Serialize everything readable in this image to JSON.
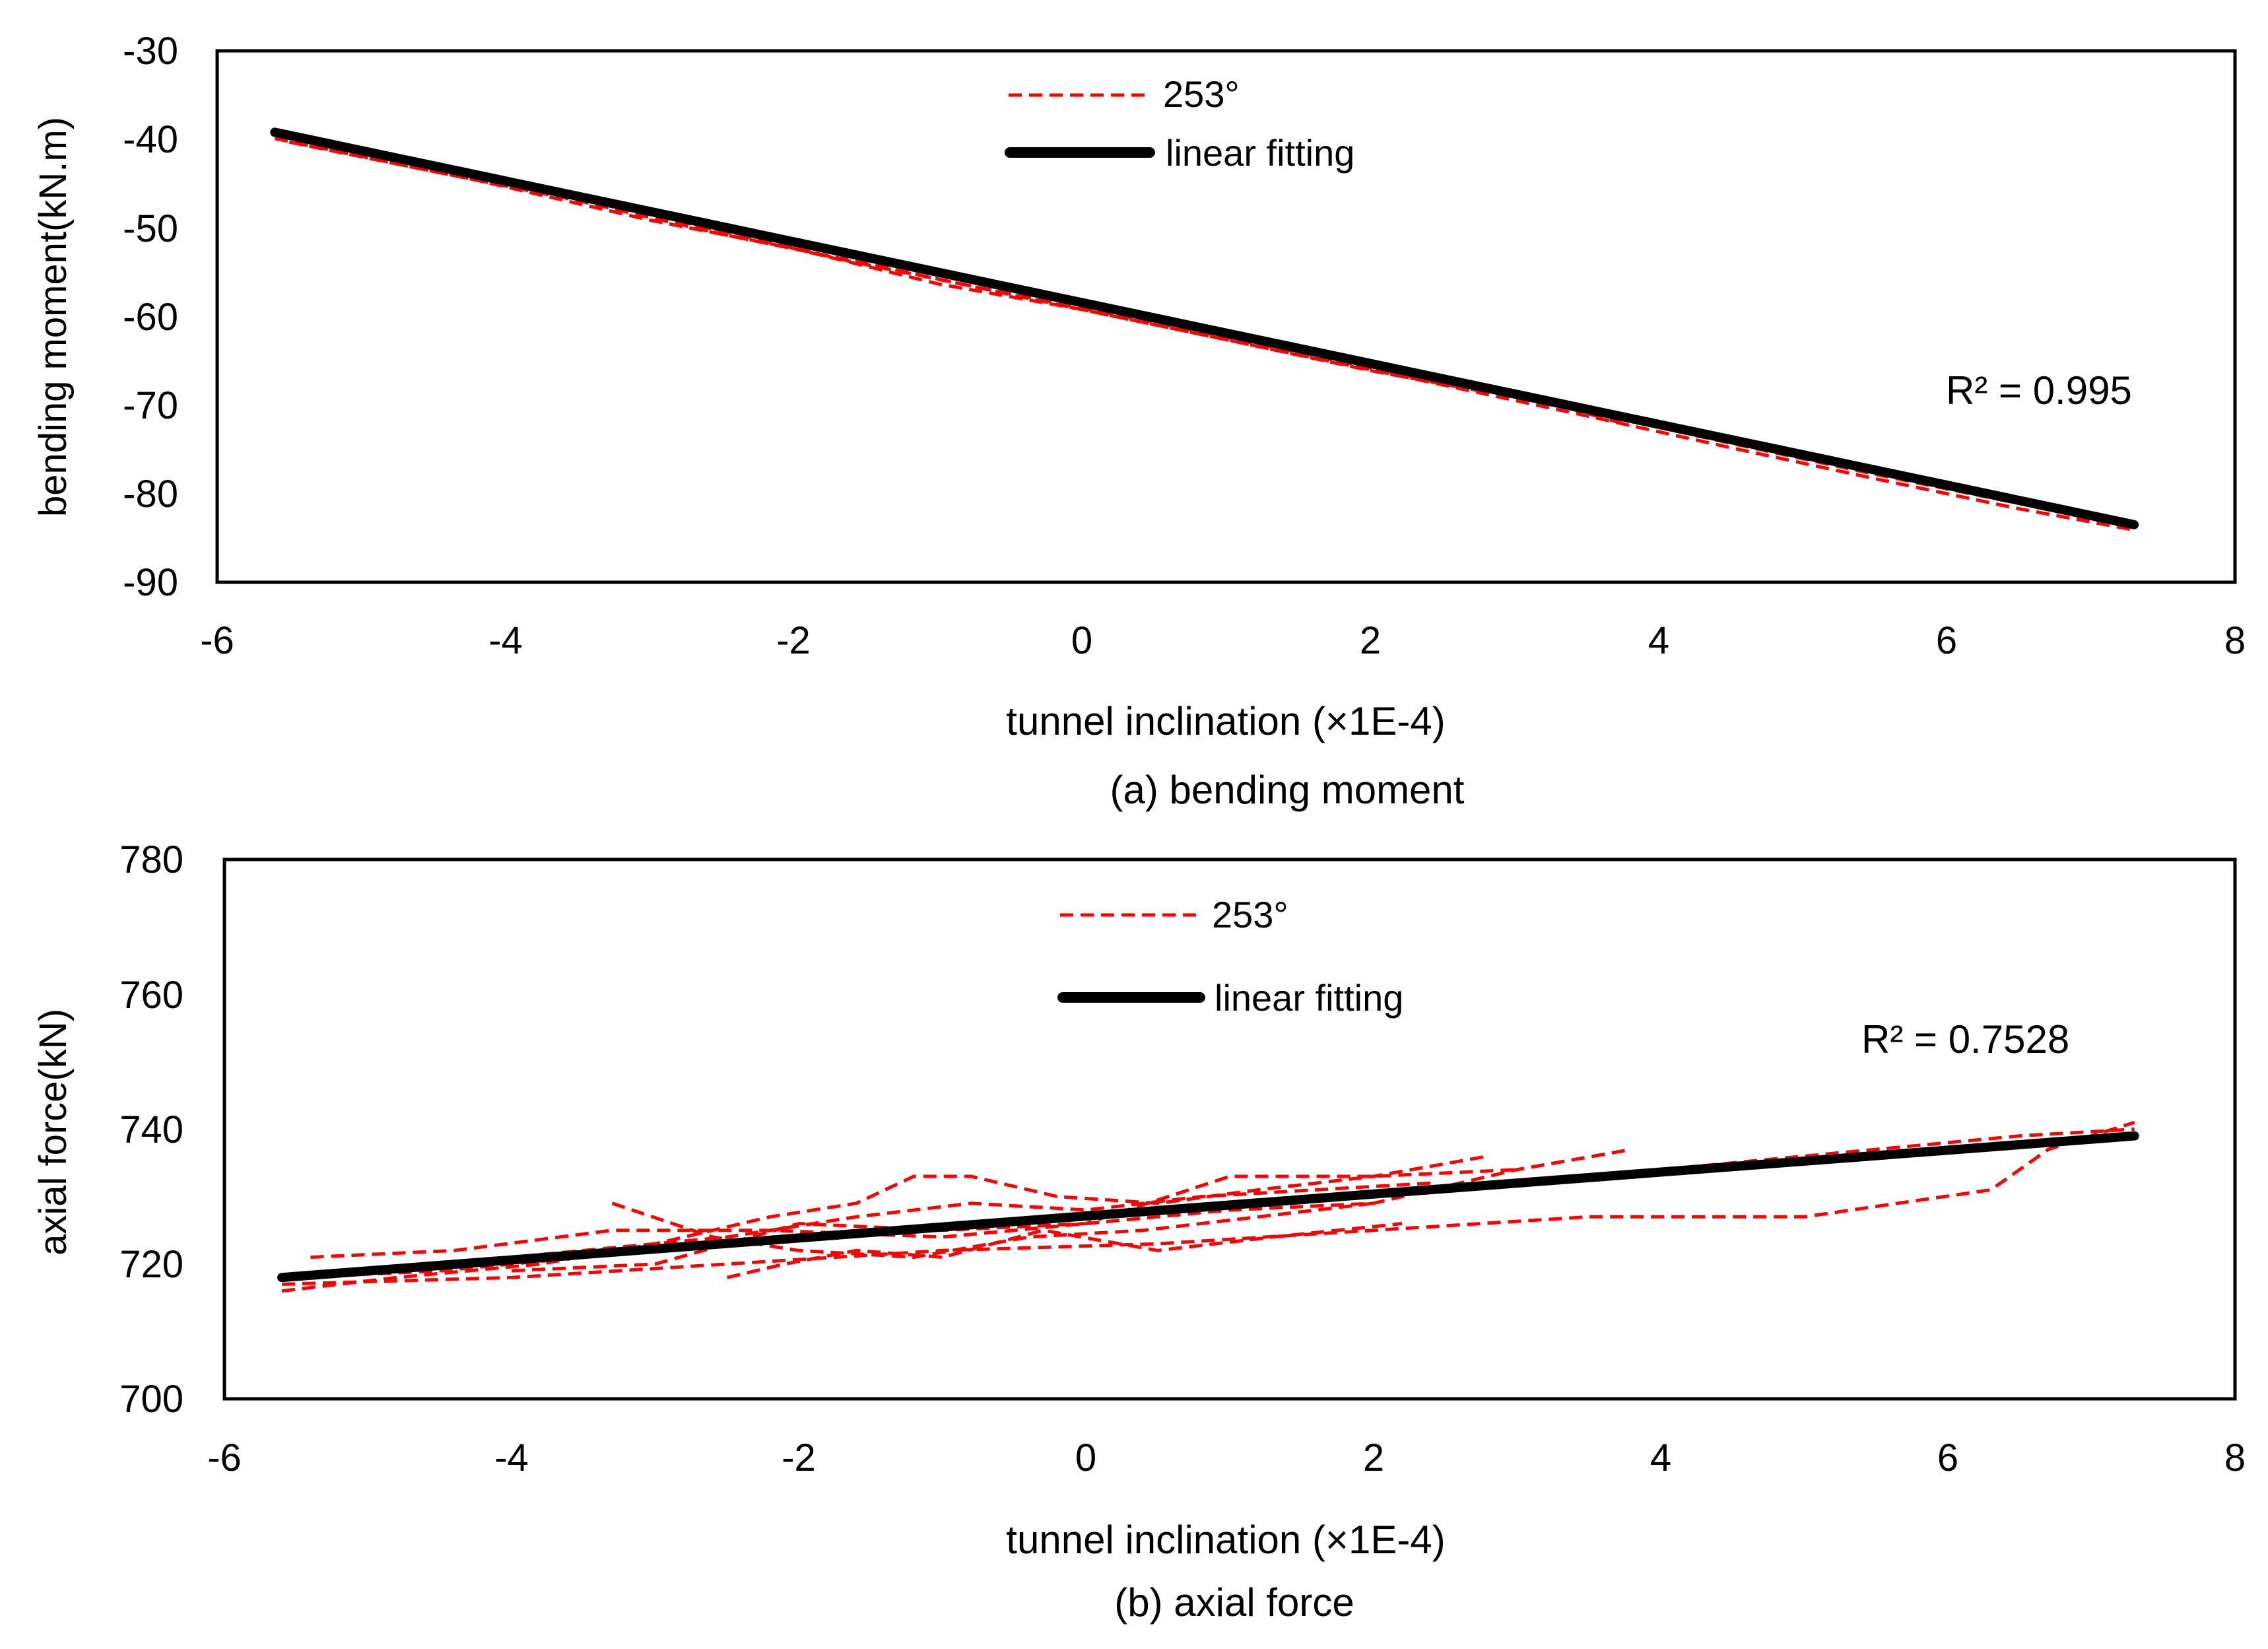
{
  "colors": {
    "data_line": "#ff0000",
    "fit_line": "#000000",
    "axis": "#000000"
  },
  "chart_data": [
    {
      "type": "line",
      "caption": "(a)  bending moment",
      "xlabel": "tunnel inclination  (×1E-4)",
      "ylabel": "bending moment(kN.m)",
      "xlim": [
        -6,
        8
      ],
      "ylim": [
        -90,
        -30
      ],
      "xticks": [
        "-6",
        "-4",
        "-2",
        "0",
        "2",
        "4",
        "6",
        "8"
      ],
      "yticks": [
        "-90",
        "-80",
        "-70",
        "-60",
        "-50",
        "-40",
        "-30"
      ],
      "grid": false,
      "legend_position": "top-center",
      "annotation": "R² = 0.995",
      "series": [
        {
          "name": "253°",
          "style": "dashed",
          "traces": [
            {
              "x": [
                -5.6,
                -4.5,
                -3.5,
                -2.5,
                -1.5,
                -0.5,
                0.5,
                1.5,
                2.5,
                3.5,
                4.5,
                5.5,
                6.5,
                7.3
              ],
              "y": [
                -39.2,
                -42.9,
                -46.5,
                -50.3,
                -53.4,
                -57.0,
                -60.4,
                -63.8,
                -67.2,
                -70.7,
                -74.3,
                -77.8,
                -81.1,
                -83.9
              ]
            },
            {
              "x": [
                -5.6,
                -4.5,
                -3.5,
                -2.5,
                -1.5,
                -0.5,
                0.5,
                1.5,
                2.5,
                3.5,
                4.5,
                5.5,
                6.5,
                7.3
              ],
              "y": [
                -39.9,
                -43.6,
                -46.9,
                -50.7,
                -54.0,
                -57.5,
                -60.9,
                -64.3,
                -67.7,
                -71.2,
                -74.8,
                -78.3,
                -81.7,
                -84.1
              ]
            },
            {
              "x": [
                -5.5,
                -4.2,
                -3.0,
                -2.0,
                -1.0,
                0.0,
                1.0,
                2.0,
                2.8
              ],
              "y": [
                -40.3,
                -44.6,
                -49.1,
                -52.3,
                -56.3,
                -59.2,
                -62.6,
                -66.1,
                -68.5
              ]
            },
            {
              "x": [
                -3.0,
                -2.0,
                -1.0,
                0.0,
                1.0,
                2.0,
                3.0,
                3.8
              ],
              "y": [
                -48.4,
                -51.4,
                -55.0,
                -58.2,
                -61.7,
                -65.0,
                -68.6,
                -72.3
              ]
            },
            {
              "x": [
                -2.8,
                -1.6,
                -0.6,
                0.6,
                1.6,
                2.6
              ],
              "y": [
                -49.2,
                -53.8,
                -57.1,
                -61.0,
                -64.4,
                -67.9
              ]
            }
          ]
        },
        {
          "name": "linear fitting",
          "style": "solid",
          "x": [
            -5.6,
            7.3
          ],
          "y": [
            -39.2,
            -83.5
          ]
        }
      ]
    },
    {
      "type": "line",
      "caption": "(b)  axial force",
      "xlabel": "tunnel inclination  (×1E-4)",
      "ylabel": "axial force(kN)",
      "xlim": [
        -6,
        8
      ],
      "ylim": [
        700,
        780
      ],
      "xticks": [
        "-6",
        "-4",
        "-2",
        "0",
        "2",
        "4",
        "6",
        "8"
      ],
      "yticks": [
        "700",
        "720",
        "740",
        "760",
        "780"
      ],
      "grid": false,
      "legend_position": "top-center",
      "annotation": "R² = 0.7528",
      "series": [
        {
          "name": "253°",
          "style": "dashed",
          "traces": [
            {
              "x": [
                -5.6,
                -4.8,
                -3.8,
                -3.0,
                -2.2,
                -1.6,
                -1.2,
                -0.8,
                -0.2,
                0.5,
                1.2,
                2.0,
                2.8
              ],
              "y": [
                716,
                718,
                720,
                723,
                727,
                729,
                733,
                733,
                730,
                729,
                731,
                733,
                736
              ]
            },
            {
              "x": [
                -5.5,
                -4.5,
                -3.5,
                -2.5,
                -1.5,
                -0.5,
                0.5,
                1.5,
                2.5,
                3.5,
                4.5,
                5.5,
                6.5,
                7.3
              ],
              "y": [
                718,
                719,
                721,
                723,
                725,
                726,
                728,
                730,
                731,
                733,
                735,
                737,
                739,
                740
              ]
            },
            {
              "x": [
                -5.6,
                -4.0,
                -2.5,
                -1.0,
                0.5,
                2.0,
                3.5,
                5.0,
                6.3,
                6.7,
                7.3
              ],
              "y": [
                717,
                718,
                720,
                722,
                723,
                725,
                727,
                727,
                731,
                737,
                741
              ]
            },
            {
              "x": [
                -5.4,
                -4.4,
                -3.3,
                -2.2,
                -1.0,
                0.0,
                1.0,
                2.0,
                3.0,
                3.8
              ],
              "y": [
                721,
                722,
                725,
                725,
                724,
                726,
                728,
                729,
                734,
                737
              ]
            },
            {
              "x": [
                -3.3,
                -2.6,
                -2.0,
                -1.2,
                -0.4,
                0.4,
                1.2,
                2.0
              ],
              "y": [
                729,
                724,
                722,
                721,
                724,
                725,
                727,
                729
              ]
            },
            {
              "x": [
                -2.5,
                -2.1,
                -1.6,
                -1.0,
                -0.3,
                0.5,
                1.3,
                2.2
              ],
              "y": [
                718,
                720,
                722,
                721,
                725,
                722,
                724,
                726
              ]
            },
            {
              "x": [
                -4.5,
                -3.5,
                -2.5,
                -1.6,
                -0.8,
                0.0,
                0.8,
                1.6,
                2.4
              ],
              "y": [
                720,
                722,
                724,
                727,
                729,
                728,
                730,
                731,
                732
              ]
            },
            {
              "x": [
                -4.0,
                -3.0,
                -2.0,
                -1.0,
                0.0,
                1.0,
                2.0,
                3.0
              ],
              "y": [
                719,
                720,
                726,
                725,
                726,
                733,
                733,
                734
              ]
            }
          ]
        },
        {
          "name": "linear fitting",
          "style": "solid",
          "x": [
            -5.6,
            7.3
          ],
          "y": [
            718.0,
            739.0
          ]
        }
      ]
    }
  ]
}
